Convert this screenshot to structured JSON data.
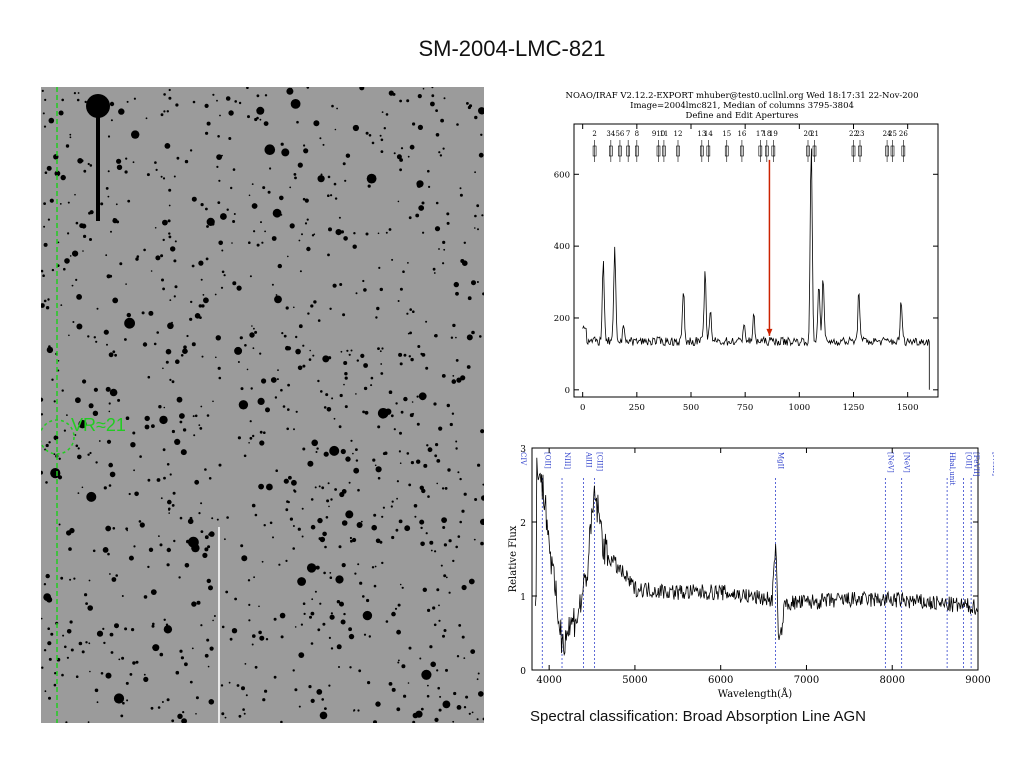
{
  "slide": {
    "title": "SM-2004-LMC-821",
    "caption": "Spectral classification: Broad Absorption Line AGN"
  },
  "finder_chart": {
    "label": "VR≈21",
    "marker_color": "#22cc22"
  },
  "chart_data": [
    {
      "type": "line",
      "header": [
        "NOAO/IRAF V2.12.2-EXPORT mhuber@test0.ucllnl.org Wed 18:17:31 22-Nov-200",
        "Image=2004lmc821, Median of columns 3795-3804",
        "Define and Edit Apertures"
      ],
      "xlim": [
        -40,
        1640
      ],
      "ylim": [
        -20,
        740
      ],
      "x_ticks": [
        0,
        250,
        500,
        750,
        1000,
        1250,
        1500
      ],
      "y_ticks": [
        0,
        200,
        400,
        600
      ],
      "aperture_labels": [
        "2",
        "34",
        "56",
        "7",
        "8",
        "910",
        "11",
        "12",
        "13",
        "14",
        "15",
        "16",
        "17",
        "18",
        "19",
        "20",
        "21",
        "22",
        "23",
        "24",
        "25",
        "26"
      ],
      "aperture_x": [
        55,
        130,
        172,
        210,
        250,
        350,
        375,
        440,
        550,
        580,
        665,
        735,
        820,
        850,
        880,
        1040,
        1070,
        1250,
        1280,
        1405,
        1430,
        1480
      ],
      "baseline": 135,
      "peaks": [
        {
          "x": 95,
          "y": 355
        },
        {
          "x": 148,
          "y": 390
        },
        {
          "x": 190,
          "y": 185
        },
        {
          "x": 465,
          "y": 275
        },
        {
          "x": 565,
          "y": 330
        },
        {
          "x": 590,
          "y": 215
        },
        {
          "x": 745,
          "y": 190
        },
        {
          "x": 790,
          "y": 205
        },
        {
          "x": 1055,
          "y": 690
        },
        {
          "x": 1090,
          "y": 305
        },
        {
          "x": 1110,
          "y": 310
        },
        {
          "x": 1275,
          "y": 280
        },
        {
          "x": 1470,
          "y": 245
        }
      ],
      "arrow": {
        "x": 862,
        "y_from": 640,
        "y_to": 150,
        "color": "#cc2200"
      }
    },
    {
      "type": "line",
      "xlabel": "Wavelength(Å)",
      "ylabel": "Relative Flux",
      "xlim": [
        3800,
        9000
      ],
      "ylim": [
        0,
        3
      ],
      "x_ticks": [
        4000,
        5000,
        6000,
        7000,
        8000,
        9000
      ],
      "y_ticks": [
        0,
        1,
        2,
        3
      ],
      "line_labels": [
        "CIV",
        "[OII]",
        "NIII]",
        "AlIII",
        "[CIII]",
        "MgII",
        "[NeV]",
        "[NeV]",
        "Hbal,unit",
        "[OII]",
        "[FeVII]",
        "[NeIII]"
      ],
      "line_positions": [
        null,
        3920,
        4150,
        4400,
        4530,
        6640,
        7920,
        8110,
        8640,
        8830,
        8920,
        null
      ],
      "line_color": "#3344cc",
      "continuum": [
        {
          "x": 3850,
          "y": 2.9
        },
        {
          "x": 3950,
          "y": 2.3
        },
        {
          "x": 4050,
          "y": 1.2
        },
        {
          "x": 4150,
          "y": 0.4
        },
        {
          "x": 4250,
          "y": 0.6
        },
        {
          "x": 4350,
          "y": 0.8
        },
        {
          "x": 4450,
          "y": 1.4
        },
        {
          "x": 4530,
          "y": 2.4
        },
        {
          "x": 4650,
          "y": 1.6
        },
        {
          "x": 5000,
          "y": 1.1
        },
        {
          "x": 5500,
          "y": 1.05
        },
        {
          "x": 6000,
          "y": 1.05
        },
        {
          "x": 6600,
          "y": 0.95
        },
        {
          "x": 6640,
          "y": 1.7
        },
        {
          "x": 6680,
          "y": 0.3
        },
        {
          "x": 6750,
          "y": 0.9
        },
        {
          "x": 7500,
          "y": 0.95
        },
        {
          "x": 8000,
          "y": 0.95
        },
        {
          "x": 8500,
          "y": 0.9
        },
        {
          "x": 9000,
          "y": 0.85
        }
      ]
    }
  ]
}
